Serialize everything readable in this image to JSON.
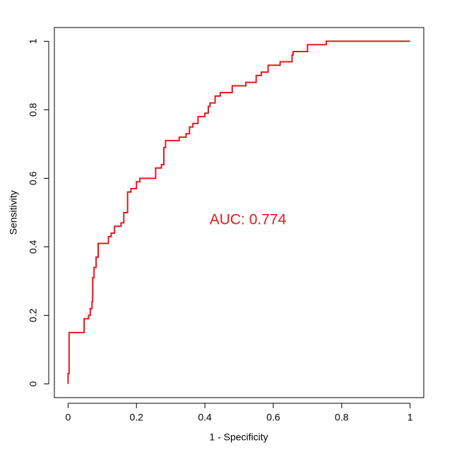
{
  "chart_data": {
    "type": "line",
    "xlabel": "1 - Specificity",
    "ylabel": "Sensitivity",
    "annotation": "AUC: 0.774",
    "series": [
      {
        "color": "#e31a1c",
        "x": [
          0,
          0,
          0.003,
          0.003,
          0.047,
          0.047,
          0.06,
          0.06,
          0.065,
          0.065,
          0.07,
          0.07,
          0.072,
          0.072,
          0.076,
          0.076,
          0.082,
          0.082,
          0.088,
          0.088,
          0.118,
          0.118,
          0.126,
          0.126,
          0.136,
          0.136,
          0.155,
          0.155,
          0.163,
          0.163,
          0.174,
          0.174,
          0.184,
          0.184,
          0.2,
          0.2,
          0.21,
          0.21,
          0.256,
          0.256,
          0.273,
          0.273,
          0.28,
          0.28,
          0.285,
          0.285,
          0.325,
          0.325,
          0.345,
          0.345,
          0.355,
          0.355,
          0.365,
          0.365,
          0.38,
          0.38,
          0.4,
          0.4,
          0.41,
          0.41,
          0.415,
          0.415,
          0.43,
          0.43,
          0.445,
          0.445,
          0.48,
          0.48,
          0.52,
          0.52,
          0.55,
          0.55,
          0.565,
          0.565,
          0.585,
          0.585,
          0.62,
          0.62,
          0.655,
          0.655,
          0.658,
          0.658,
          0.7,
          0.7,
          0.755,
          0.755,
          1
        ],
        "values": [
          0,
          0.03,
          0.03,
          0.15,
          0.15,
          0.19,
          0.19,
          0.2,
          0.2,
          0.22,
          0.22,
          0.24,
          0.24,
          0.31,
          0.31,
          0.34,
          0.34,
          0.37,
          0.37,
          0.41,
          0.41,
          0.43,
          0.43,
          0.44,
          0.44,
          0.46,
          0.46,
          0.47,
          0.47,
          0.5,
          0.5,
          0.56,
          0.56,
          0.57,
          0.57,
          0.59,
          0.59,
          0.6,
          0.6,
          0.63,
          0.63,
          0.64,
          0.64,
          0.69,
          0.69,
          0.71,
          0.71,
          0.72,
          0.72,
          0.73,
          0.73,
          0.75,
          0.75,
          0.76,
          0.76,
          0.78,
          0.78,
          0.79,
          0.79,
          0.81,
          0.81,
          0.82,
          0.82,
          0.84,
          0.84,
          0.85,
          0.85,
          0.87,
          0.87,
          0.88,
          0.88,
          0.9,
          0.9,
          0.91,
          0.91,
          0.93,
          0.93,
          0.94,
          0.94,
          0.96,
          0.96,
          0.97,
          0.97,
          0.99,
          0.99,
          1,
          1
        ]
      }
    ],
    "xlim": [
      -0.04,
      1.04
    ],
    "ylim": [
      -0.04,
      1.04
    ],
    "xticks": [
      0,
      0.2,
      0.4,
      0.6,
      0.8,
      1
    ],
    "yticks": [
      0,
      0.2,
      0.4,
      0.6,
      0.8,
      1
    ]
  }
}
